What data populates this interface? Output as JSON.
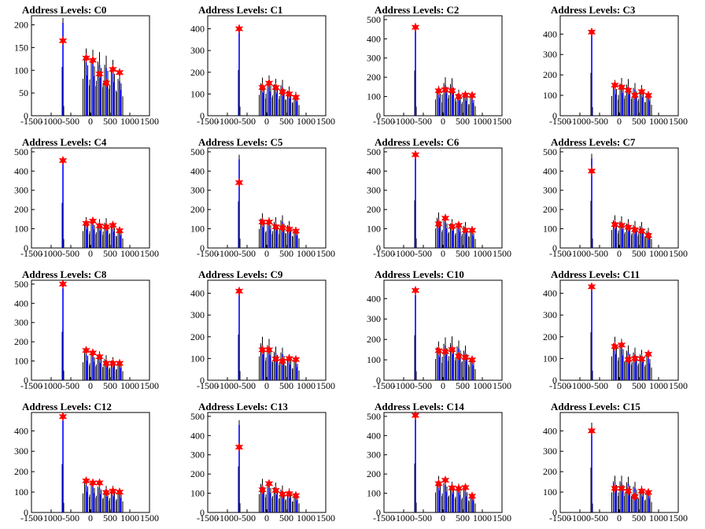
{
  "colors": {
    "spike": "#000000",
    "series": "#0000ff",
    "marker": "#ff0000",
    "frame": "#000000"
  },
  "chart_data": [
    {
      "type": "bar",
      "title": "Address Levels: C0",
      "xlim": [
        -1500,
        1500
      ],
      "ylim": [
        0,
        220
      ],
      "yticks": [
        0,
        50,
        100,
        150,
        200
      ],
      "xtick_labels": [
        "-1500",
        "-1000",
        "-500",
        "0",
        "500",
        "1000",
        "1500"
      ],
      "x": [
        -700,
        -110,
        60,
        230,
        400,
        570,
        740
      ],
      "values": [
        215,
        148,
        145,
        140,
        132,
        123,
        95
      ],
      "peaks": [
        165,
        127,
        122,
        92,
        72,
        102,
        95
      ]
    },
    {
      "type": "bar",
      "title": "Address Levels: C1",
      "xlim": [
        -1500,
        1500
      ],
      "ylim": [
        0,
        460
      ],
      "yticks": [
        0,
        100,
        200,
        300,
        400
      ],
      "xtick_labels": [
        "-1500",
        "-1000",
        "-500",
        "0",
        "500",
        "1000",
        "1500"
      ],
      "x": [
        -700,
        -110,
        60,
        230,
        400,
        570,
        740
      ],
      "values": [
        420,
        175,
        185,
        170,
        165,
        135,
        110
      ],
      "peaks": [
        400,
        130,
        150,
        130,
        110,
        100,
        85
      ]
    },
    {
      "type": "bar",
      "title": "Address Levels: C2",
      "xlim": [
        -1500,
        1500
      ],
      "ylim": [
        0,
        520
      ],
      "yticks": [
        0,
        100,
        200,
        300,
        400,
        500
      ],
      "xtick_labels": [
        "-1500",
        "-1000",
        "-500",
        "0",
        "500",
        "1000",
        "1500"
      ],
      "x": [
        -700,
        -110,
        60,
        230,
        400,
        570,
        740
      ],
      "values": [
        470,
        155,
        200,
        195,
        135,
        130,
        110
      ],
      "peaks": [
        460,
        130,
        135,
        130,
        100,
        108,
        105
      ]
    },
    {
      "type": "bar",
      "title": "Address Levels: C3",
      "xlim": [
        -1500,
        1500
      ],
      "ylim": [
        0,
        490
      ],
      "yticks": [
        0,
        100,
        200,
        300,
        400
      ],
      "xtick_labels": [
        "-1500",
        "-1000",
        "-500",
        "0",
        "500",
        "1000",
        "1500"
      ],
      "x": [
        -700,
        -110,
        60,
        230,
        400,
        570,
        740
      ],
      "values": [
        420,
        175,
        185,
        180,
        160,
        150,
        120
      ],
      "peaks": [
        410,
        150,
        140,
        125,
        100,
        118,
        100
      ]
    },
    {
      "type": "bar",
      "title": "Address Levels: C4",
      "xlim": [
        -1500,
        1500
      ],
      "ylim": [
        0,
        520
      ],
      "yticks": [
        0,
        100,
        200,
        300,
        400,
        500
      ],
      "xtick_labels": [
        "-1500",
        "-1000",
        "-500",
        "0",
        "500",
        "1000",
        "1500"
      ],
      "x": [
        -700,
        -110,
        60,
        230,
        400,
        570,
        740
      ],
      "values": [
        470,
        160,
        160,
        150,
        155,
        140,
        110
      ],
      "peaks": [
        455,
        128,
        140,
        115,
        110,
        118,
        90
      ]
    },
    {
      "type": "bar",
      "title": "Address Levels: C5",
      "xlim": [
        -1500,
        1500
      ],
      "ylim": [
        0,
        520
      ],
      "yticks": [
        0,
        100,
        200,
        300,
        400,
        500
      ],
      "xtick_labels": [
        "-1500",
        "-1000",
        "-500",
        "0",
        "500",
        "1000",
        "1500"
      ],
      "x": [
        -700,
        -110,
        60,
        230,
        400,
        570,
        740
      ],
      "values": [
        485,
        180,
        160,
        160,
        170,
        140,
        110
      ],
      "peaks": [
        340,
        135,
        135,
        110,
        105,
        98,
        88
      ]
    },
    {
      "type": "bar",
      "title": "Address Levels: C6",
      "xlim": [
        -1500,
        1500
      ],
      "ylim": [
        0,
        520
      ],
      "yticks": [
        0,
        100,
        200,
        300,
        400,
        500
      ],
      "xtick_labels": [
        "-1500",
        "-1000",
        "-500",
        "0",
        "500",
        "1000",
        "1500"
      ],
      "x": [
        -700,
        -110,
        60,
        230,
        400,
        570,
        740
      ],
      "values": [
        495,
        185,
        170,
        150,
        140,
        135,
        105
      ],
      "peaks": [
        485,
        125,
        155,
        112,
        118,
        92,
        92
      ]
    },
    {
      "type": "bar",
      "title": "Address Levels: C7",
      "xlim": [
        -1500,
        1500
      ],
      "ylim": [
        0,
        520
      ],
      "yticks": [
        0,
        100,
        200,
        300,
        400,
        500
      ],
      "xtick_labels": [
        "-1500",
        "-1000",
        "-500",
        "0",
        "500",
        "1000",
        "1500"
      ],
      "x": [
        -700,
        -110,
        60,
        230,
        400,
        570,
        740
      ],
      "values": [
        490,
        170,
        165,
        150,
        140,
        135,
        105
      ],
      "peaks": [
        400,
        122,
        118,
        108,
        95,
        88,
        65
      ]
    },
    {
      "type": "bar",
      "title": "Address Levels: C8",
      "xlim": [
        -1500,
        1500
      ],
      "ylim": [
        0,
        520
      ],
      "yticks": [
        0,
        100,
        200,
        300,
        400,
        500
      ],
      "xtick_labels": [
        "-1500",
        "-1000",
        "-500",
        "0",
        "500",
        "1000",
        "1500"
      ],
      "x": [
        -700,
        -110,
        60,
        230,
        400,
        570,
        740
      ],
      "values": [
        505,
        170,
        160,
        150,
        130,
        120,
        105
      ],
      "peaks": [
        500,
        155,
        142,
        122,
        88,
        88,
        88
      ]
    },
    {
      "type": "bar",
      "title": "Address Levels: C9",
      "xlim": [
        -1500,
        1500
      ],
      "ylim": [
        0,
        460
      ],
      "yticks": [
        0,
        100,
        200,
        300,
        400
      ],
      "xtick_labels": [
        "-1500",
        "-1000",
        "-500",
        "0",
        "500",
        "1000",
        "1500"
      ],
      "x": [
        -700,
        -110,
        60,
        230,
        400,
        570,
        740
      ],
      "values": [
        420,
        200,
        190,
        155,
        150,
        120,
        100
      ],
      "peaks": [
        410,
        140,
        140,
        98,
        88,
        100,
        95
      ]
    },
    {
      "type": "bar",
      "title": "Address Levels: C10",
      "xlim": [
        -1500,
        1500
      ],
      "ylim": [
        0,
        490
      ],
      "yticks": [
        0,
        100,
        200,
        300,
        400
      ],
      "xtick_labels": [
        "-1500",
        "-1000",
        "-500",
        "0",
        "500",
        "1000",
        "1500"
      ],
      "x": [
        -700,
        -110,
        60,
        230,
        400,
        570,
        740
      ],
      "values": [
        440,
        190,
        210,
        215,
        195,
        170,
        120
      ],
      "peaks": [
        440,
        145,
        140,
        150,
        118,
        112,
        100
      ]
    },
    {
      "type": "bar",
      "title": "Address Levels: C11",
      "xlim": [
        -1500,
        1500
      ],
      "ylim": [
        0,
        460
      ],
      "yticks": [
        0,
        100,
        200,
        300,
        400
      ],
      "xtick_labels": [
        "-1500",
        "-1000",
        "-500",
        "0",
        "500",
        "1000",
        "1500"
      ],
      "x": [
        -700,
        -110,
        60,
        230,
        400,
        570,
        740
      ],
      "values": [
        440,
        200,
        190,
        160,
        150,
        140,
        130
      ],
      "peaks": [
        430,
        155,
        162,
        95,
        100,
        98,
        120
      ]
    },
    {
      "type": "bar",
      "title": "Address Levels: C12",
      "xlim": [
        -1500,
        1500
      ],
      "ylim": [
        0,
        490
      ],
      "yticks": [
        0,
        100,
        200,
        300,
        400
      ],
      "xtick_labels": [
        "-1500",
        "-1000",
        "-500",
        "0",
        "500",
        "1000",
        "1500"
      ],
      "x": [
        -700,
        -110,
        60,
        230,
        400,
        570,
        740
      ],
      "values": [
        475,
        170,
        160,
        150,
        130,
        130,
        120
      ],
      "peaks": [
        470,
        155,
        145,
        145,
        98,
        105,
        100
      ]
    },
    {
      "type": "bar",
      "title": "Address Levels: C13",
      "xlim": [
        -1500,
        1500
      ],
      "ylim": [
        0,
        520
      ],
      "yticks": [
        0,
        100,
        200,
        300,
        400,
        500
      ],
      "xtick_labels": [
        "-1500",
        "-1000",
        "-500",
        "0",
        "500",
        "1000",
        "1500"
      ],
      "x": [
        -700,
        -110,
        60,
        230,
        400,
        570,
        740
      ],
      "values": [
        480,
        175,
        170,
        155,
        140,
        125,
        105
      ],
      "peaks": [
        340,
        118,
        150,
        115,
        95,
        98,
        88
      ]
    },
    {
      "type": "bar",
      "title": "Address Levels: C14",
      "xlim": [
        -1500,
        1500
      ],
      "ylim": [
        0,
        520
      ],
      "yticks": [
        0,
        100,
        200,
        300,
        400,
        500
      ],
      "xtick_labels": [
        "-1500",
        "-1000",
        "-500",
        "0",
        "500",
        "1000",
        "1500"
      ],
      "x": [
        -700,
        -110,
        60,
        230,
        400,
        570,
        740
      ],
      "values": [
        510,
        190,
        180,
        160,
        150,
        140,
        105
      ],
      "peaks": [
        505,
        150,
        168,
        128,
        125,
        130,
        85
      ]
    },
    {
      "type": "bar",
      "title": "Address Levels: C15",
      "xlim": [
        -1500,
        1500
      ],
      "ylim": [
        0,
        490
      ],
      "yticks": [
        0,
        100,
        200,
        300,
        400
      ],
      "xtick_labels": [
        "-1500",
        "-1000",
        "-500",
        "0",
        "500",
        "1000",
        "1500"
      ],
      "x": [
        -700,
        -110,
        60,
        230,
        400,
        570,
        740
      ],
      "values": [
        440,
        180,
        180,
        175,
        150,
        130,
        115
      ],
      "peaks": [
        400,
        118,
        118,
        105,
        78,
        105,
        98
      ]
    }
  ]
}
